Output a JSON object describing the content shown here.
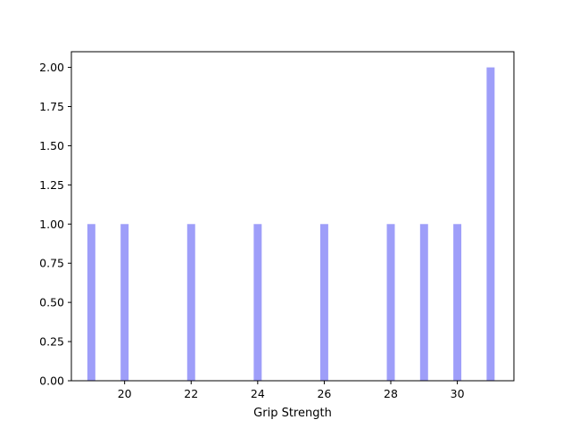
{
  "chart_data": {
    "type": "bar",
    "title": "",
    "xlabel": "Grip Strength",
    "ylabel": "",
    "xlim": [
      18.4,
      31.7
    ],
    "ylim": [
      0,
      2.1
    ],
    "xticks": [
      20,
      22,
      24,
      26,
      28,
      30
    ],
    "yticks": [
      0.0,
      0.25,
      0.5,
      0.75,
      1.0,
      1.25,
      1.5,
      1.75,
      2.0
    ],
    "ytick_labels": [
      "0.00",
      "0.25",
      "0.50",
      "0.75",
      "1.00",
      "1.25",
      "1.50",
      "1.75",
      "2.00"
    ],
    "bar_width": 0.24,
    "color": "#9e9ef9",
    "grid": false,
    "x": [
      19,
      20,
      22,
      24,
      26,
      28,
      29,
      30,
      31
    ],
    "values": [
      1,
      1,
      1,
      1,
      1,
      1,
      1,
      1,
      2
    ]
  }
}
